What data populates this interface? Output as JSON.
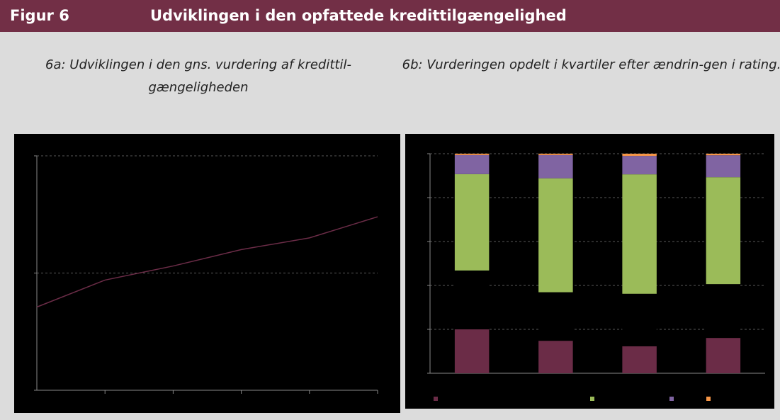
{
  "header": {
    "figure": "Figur 6",
    "title": "Udviklingen i den opfattede kredittilgængelighed"
  },
  "chart_data": [
    {
      "type": "line",
      "title": "6a: Udviklingen i den gns. vurdering af kredittil-gængeligheden",
      "categories": [
        null,
        null,
        null,
        null,
        null,
        null
      ],
      "series": [
        {
          "color": "#6b2c47",
          "values": [
            0.71,
            0.94,
            1.06,
            1.2,
            1.3,
            1.48
          ]
        }
      ],
      "ylim": [
        0,
        2
      ],
      "yticks": [
        0,
        1,
        2
      ],
      "grid": true
    },
    {
      "type": "stacked_bar",
      "title": "6b: Vurderingen opdelt i kvartiler efter ændrin-gen i rating.",
      "categories": [
        null,
        null,
        null,
        null
      ],
      "series": [
        {
          "color": "#6b2c47",
          "values": [
            20,
            14.8,
            12.3,
            16.1
          ]
        },
        {
          "color": "#000000",
          "values": [
            26.8,
            22.1,
            23.9,
            24.5
          ]
        },
        {
          "color": "#9bbb59",
          "values": [
            43.9,
            51.9,
            54.4,
            48.7
          ]
        },
        {
          "color": "#8064a2",
          "values": [
            8.7,
            10.6,
            8.4,
            10
          ]
        },
        {
          "color": "#f79646",
          "values": [
            0.6,
            0.6,
            1,
            0.7
          ]
        }
      ],
      "ylim": [
        0,
        100
      ],
      "yticks": [
        0,
        20,
        40,
        60,
        80,
        100
      ],
      "grid": true
    }
  ]
}
